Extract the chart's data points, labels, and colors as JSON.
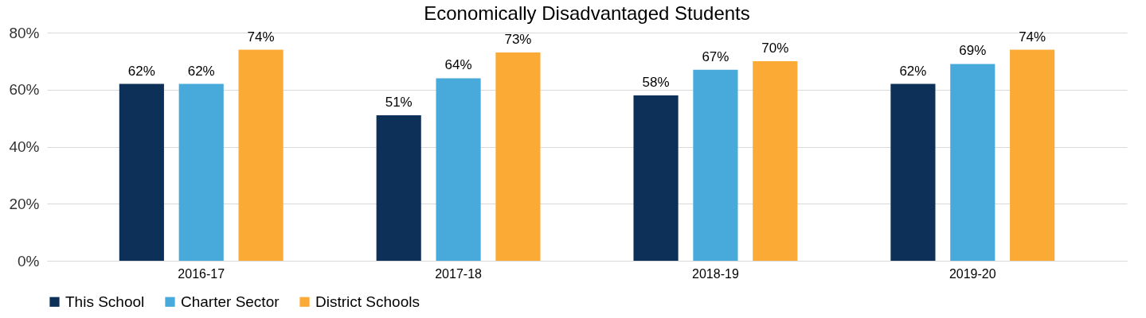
{
  "chart_data": {
    "type": "bar",
    "title": "Economically Disadvantaged Students",
    "categories": [
      "2016-17",
      "2017-18",
      "2018-19",
      "2019-20"
    ],
    "series": [
      {
        "name": "This School",
        "color": "#0d3059",
        "values": [
          62,
          51,
          58,
          62
        ],
        "value_labels": [
          "62%",
          "51%",
          "58%",
          "62%"
        ]
      },
      {
        "name": "Charter Sector",
        "color": "#48aadb",
        "values": [
          62,
          64,
          67,
          69
        ],
        "value_labels": [
          "62%",
          "64%",
          "67%",
          "69%"
        ]
      },
      {
        "name": "District Schools",
        "color": "#fbab35",
        "values": [
          74,
          73,
          70,
          74
        ],
        "value_labels": [
          "74%",
          "73%",
          "70%",
          "74%"
        ]
      }
    ],
    "ylim": [
      0,
      80
    ],
    "yticks": [
      {
        "value": 0,
        "label": "0%"
      },
      {
        "value": 20,
        "label": "20%"
      },
      {
        "value": 40,
        "label": "40%"
      },
      {
        "value": 60,
        "label": "60%"
      },
      {
        "value": 80,
        "label": "80%"
      }
    ],
    "grid": "y",
    "legend": "bottom"
  }
}
